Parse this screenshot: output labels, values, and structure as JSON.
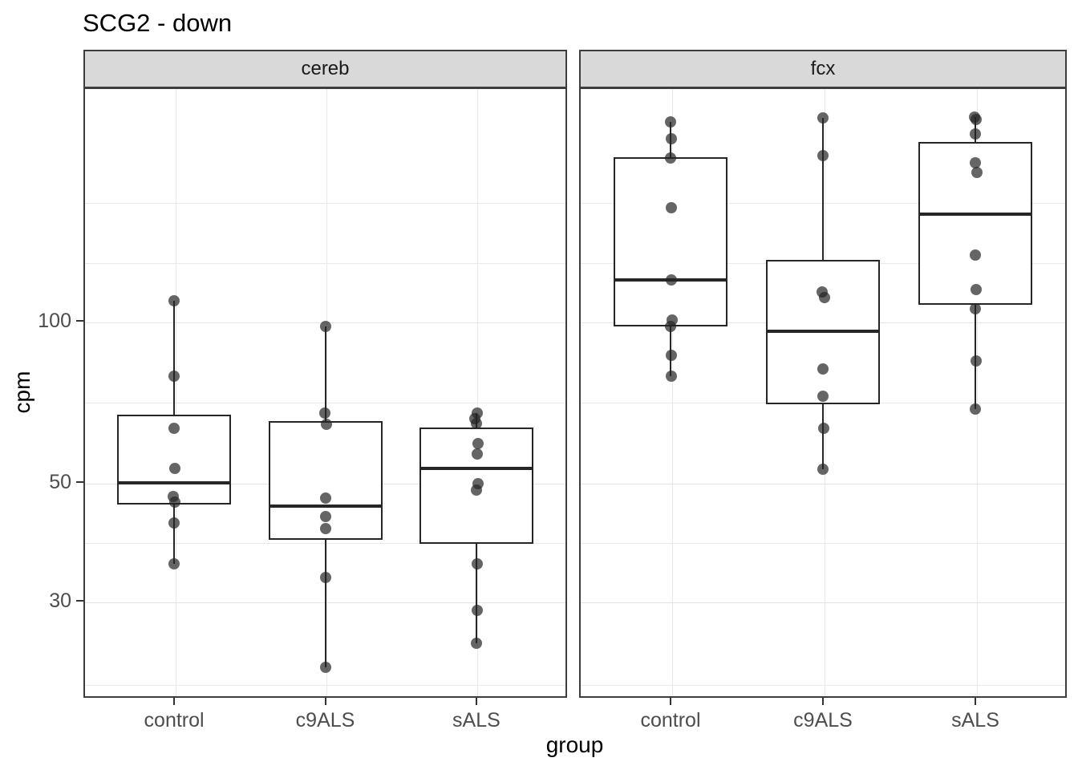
{
  "title": "SCG2 - down",
  "axis": {
    "x_title": "group",
    "y_title": "cpm",
    "x_categories": [
      "control",
      "c9ALS",
      "sALS"
    ],
    "y_tick_labels": [
      "100",
      "50",
      "30"
    ],
    "y_tick_values": [
      100,
      50,
      30
    ]
  },
  "colors": {
    "strip_fill": "#d9d9d9",
    "strip_text": "#1a1a1a",
    "panel_border": "#3d3d3d",
    "grid_major": "#e4e4e4",
    "grid_minor": "#e9e9e9",
    "box_border": "#262626",
    "point": "rgba(35,35,35,0.70)",
    "axis_text": "#4d4d4d",
    "tick_mark": "#333333",
    "title_text": "#000000"
  },
  "chart_data": {
    "type": "boxplot",
    "title": "SCG2 - down",
    "xlabel": "group",
    "ylabel": "cpm",
    "categories": [
      "control",
      "c9ALS",
      "sALS"
    ],
    "y_scale": {
      "type": "log10",
      "domain": [
        19.8,
        272.8
      ],
      "major_ticks": [
        100,
        50,
        30
      ],
      "minor_gridline_values": [
        167,
        129,
        70.7,
        38.7,
        21
      ],
      "grid": true
    },
    "legend": "none",
    "points_format": [
      "cpm",
      "dx_px"
    ],
    "facets": [
      {
        "label": "cereb",
        "groups": [
          {
            "name": "control",
            "box": {
              "whisker_high": 110,
              "q3": 67.3,
              "median": 50.3,
              "q1": 45.7,
              "whisker_low": 35.4
            },
            "points": [
              [
                110,
                0
              ],
              [
                79.5,
                0
              ],
              [
                63.5,
                0
              ],
              [
                53.5,
                1
              ],
              [
                47.3,
                -1
              ],
              [
                46.3,
                1
              ],
              [
                42.3,
                0
              ],
              [
                35.4,
                0
              ]
            ]
          },
          {
            "name": "c9ALS",
            "box": {
              "whisker_high": 98.5,
              "q3": 65.5,
              "median": 45.4,
              "q1": 39.3,
              "whisker_low": 22.7
            },
            "points": [
              [
                98.5,
                0
              ],
              [
                67.8,
                -1
              ],
              [
                64.5,
                1
              ],
              [
                47.1,
                0
              ],
              [
                43.5,
                0
              ],
              [
                41.3,
                0
              ],
              [
                33.4,
                0
              ],
              [
                22.7,
                0
              ]
            ]
          },
          {
            "name": "sALS",
            "box": {
              "whisker_high": 67.8,
              "q3": 63.7,
              "median": 53.4,
              "q1": 38.6,
              "whisker_low": 25.2
            },
            "points": [
              [
                67.8,
                1
              ],
              [
                66.2,
                -2
              ],
              [
                64.8,
                0
              ],
              [
                59.4,
                2
              ],
              [
                56.9,
                1
              ],
              [
                50.1,
                2
              ],
              [
                48.7,
                0
              ],
              [
                35.5,
                1
              ],
              [
                29.0,
                1
              ],
              [
                25.2,
                0
              ]
            ]
          }
        ]
      },
      {
        "label": "fcx",
        "groups": [
          {
            "name": "control",
            "box": {
              "whisker_high": 237,
              "q3": 203.4,
              "median": 120,
              "q1": 98.3,
              "whisker_low": 79.3
            },
            "points": [
              [
                237,
                0
              ],
              [
                220,
                1
              ],
              [
                203,
                0
              ],
              [
                164,
                1
              ],
              [
                120,
                1
              ],
              [
                101,
                2
              ],
              [
                98.5,
                0
              ],
              [
                87,
                1
              ],
              [
                79.3,
                1
              ]
            ]
          },
          {
            "name": "c9ALS",
            "box": {
              "whisker_high": 241,
              "q3": 131,
              "median": 96.3,
              "q1": 70.4,
              "whisker_low": 53.2
            },
            "points": [
              [
                241,
                0
              ],
              [
                205,
                0
              ],
              [
                114,
                -1
              ],
              [
                111.5,
                2
              ],
              [
                81.8,
                0
              ],
              [
                72.9,
                0
              ],
              [
                63.5,
                1
              ],
              [
                53.2,
                0
              ]
            ]
          },
          {
            "name": "sALS",
            "box": {
              "whisker_high": 242,
              "q3": 217,
              "median": 159.3,
              "q1": 108,
              "whisker_low": 68.9
            },
            "points": [
              [
                242,
                -1
              ],
              [
                239,
                1
              ],
              [
                225,
                0
              ],
              [
                198.6,
                0
              ],
              [
                190.7,
                2
              ],
              [
                133.6,
                0
              ],
              [
                115.4,
                1
              ],
              [
                106,
                0
              ],
              [
                84.9,
                1
              ],
              [
                68.9,
                0
              ]
            ]
          }
        ]
      }
    ]
  }
}
